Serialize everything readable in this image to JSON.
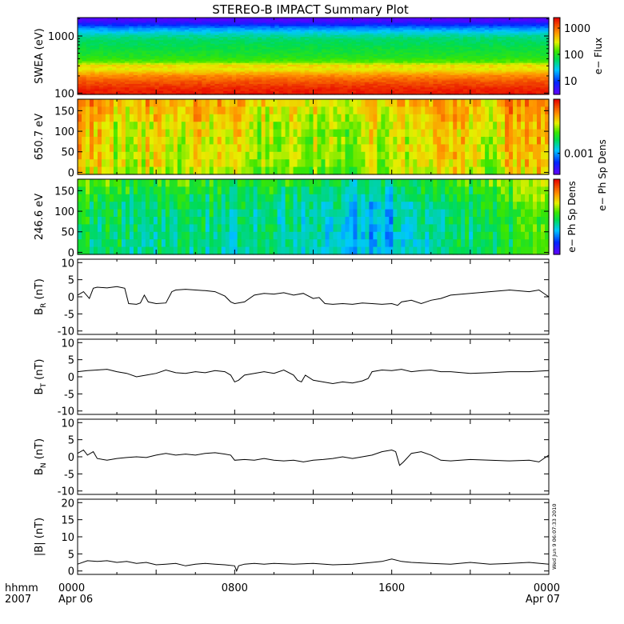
{
  "title": "STEREO-B IMPACT Summary Plot",
  "xaxis": {
    "row1_label": "hhmm",
    "row2_label": "2007",
    "ticks": [
      {
        "hour": 0,
        "line1": "0000",
        "line2": "Apr 06"
      },
      {
        "hour": 8,
        "line1": "0800",
        "line2": ""
      },
      {
        "hour": 16,
        "line1": "1600",
        "line2": ""
      },
      {
        "hour": 24,
        "line1": "0000",
        "line2": "Apr 07"
      }
    ],
    "range_hours": [
      0,
      24
    ]
  },
  "timestamp": "Wed Jun 9 06:07:33 2010",
  "chart_data": [
    {
      "type": "heatmap",
      "id": "swea",
      "ylabel": "SWEA (eV)",
      "ylog": true,
      "ylim": [
        95,
        2100
      ],
      "yticks": [
        {
          "v": 100,
          "label": "100"
        },
        {
          "v": 1000,
          "label": "1000"
        }
      ],
      "colorbar": {
        "label": "e− Flux",
        "log": true,
        "range": [
          3,
          2500
        ],
        "ticks": [
          {
            "v": 10,
            "label": "10"
          },
          {
            "v": 100,
            "label": "100"
          },
          {
            "v": 1000,
            "label": "1000"
          }
        ]
      },
      "profile": {
        "energy_ev": [
          95,
          120,
          150,
          200,
          260,
          300,
          350,
          420,
          500,
          600,
          700,
          800,
          900,
          1000,
          1200,
          1400,
          1600,
          1800,
          2100
        ],
        "level": [
          0.97,
          0.95,
          0.9,
          0.82,
          0.68,
          0.72,
          0.58,
          0.52,
          0.5,
          0.48,
          0.46,
          0.45,
          0.43,
          0.4,
          0.32,
          0.24,
          0.14,
          0.05,
          0.02
        ]
      }
    },
    {
      "type": "heatmap",
      "id": "pad650",
      "ylabel": "650.7 eV",
      "ylim": [
        -5,
        178
      ],
      "yticks": [
        {
          "v": 0,
          "label": "0"
        },
        {
          "v": 50,
          "label": "50"
        },
        {
          "v": 100,
          "label": "100"
        },
        {
          "v": 150,
          "label": "150"
        }
      ],
      "colorbar": {
        "label": "e− Ph Sp Dens",
        "ticks": [
          {
            "level": 0.28,
            "label": "0.001"
          }
        ]
      },
      "time_hours": [
        0,
        1,
        2,
        3,
        4,
        5,
        6,
        7,
        8,
        9,
        10,
        11,
        12,
        13,
        14,
        15,
        16,
        17,
        18,
        19,
        20,
        21,
        22,
        23,
        24
      ],
      "mean_level": [
        0.74,
        0.7,
        0.62,
        0.66,
        0.69,
        0.64,
        0.72,
        0.66,
        0.68,
        0.64,
        0.6,
        0.67,
        0.62,
        0.58,
        0.6,
        0.66,
        0.64,
        0.62,
        0.68,
        0.72,
        0.68,
        0.65,
        0.72,
        0.76,
        0.74
      ],
      "pitch_angle_trend": [
        0.56,
        0.6,
        0.62,
        0.63,
        0.63,
        0.64,
        0.66,
        0.7,
        0.74,
        0.78
      ]
    },
    {
      "type": "heatmap",
      "id": "pad246",
      "ylabel": "246.6 eV",
      "ylim": [
        -5,
        178
      ],
      "yticks": [
        {
          "v": 0,
          "label": "0"
        },
        {
          "v": 50,
          "label": "50"
        },
        {
          "v": 100,
          "label": "100"
        },
        {
          "v": 150,
          "label": "150"
        }
      ],
      "colorbar": {
        "label": "e− Ph Sp Dens"
      },
      "time_hours": [
        0,
        1,
        2,
        3,
        4,
        5,
        6,
        7,
        8,
        9,
        10,
        11,
        12,
        13,
        14,
        15,
        16,
        17,
        18,
        19,
        20,
        21,
        22,
        23,
        24
      ],
      "mean_level": [
        0.5,
        0.5,
        0.48,
        0.46,
        0.48,
        0.47,
        0.48,
        0.47,
        0.47,
        0.46,
        0.45,
        0.45,
        0.46,
        0.4,
        0.38,
        0.36,
        0.36,
        0.42,
        0.46,
        0.47,
        0.48,
        0.49,
        0.52,
        0.6,
        0.62
      ],
      "pitch_angle_trend": [
        0.5,
        0.5,
        0.5,
        0.51,
        0.52,
        0.53,
        0.55,
        0.6,
        0.66,
        0.72
      ]
    },
    {
      "type": "line",
      "id": "br",
      "ylabel": "B",
      "ylabel_sub": "R",
      "yunit": "(nT)",
      "ylim": [
        -11,
        11
      ],
      "yticks": [
        -10,
        -5,
        0,
        5,
        10
      ],
      "x": [
        0,
        0.3,
        0.6,
        0.8,
        1.0,
        1.5,
        2.0,
        2.4,
        2.6,
        3.0,
        3.2,
        3.4,
        3.6,
        4.0,
        4.5,
        4.8,
        5.0,
        5.5,
        6.0,
        6.5,
        7.0,
        7.5,
        7.8,
        8.0,
        8.5,
        9.0,
        9.5,
        10.0,
        10.5,
        11.0,
        11.5,
        12.0,
        12.3,
        12.6,
        13.0,
        13.5,
        14.0,
        14.5,
        15.0,
        15.5,
        16.0,
        16.3,
        16.5,
        17.0,
        17.5,
        18.0,
        18.5,
        19.0,
        20.0,
        21.0,
        22.0,
        23.0,
        23.5,
        24.0
      ],
      "y": [
        0.5,
        1.5,
        -0.5,
        2.5,
        2.8,
        2.6,
        3.0,
        2.5,
        -2.0,
        -2.2,
        -1.8,
        0.5,
        -1.5,
        -2.0,
        -1.8,
        1.5,
        2.0,
        2.2,
        2.0,
        1.8,
        1.5,
        0.2,
        -1.5,
        -2.0,
        -1.5,
        0.5,
        1.0,
        0.8,
        1.2,
        0.5,
        1.0,
        -0.5,
        -0.2,
        -2.0,
        -2.2,
        -2.0,
        -2.2,
        -1.8,
        -2.0,
        -2.2,
        -2.0,
        -2.5,
        -1.5,
        -1.0,
        -2.0,
        -1.0,
        -0.5,
        0.5,
        1.0,
        1.5,
        2.0,
        1.5,
        2.0,
        0.0
      ]
    },
    {
      "type": "line",
      "id": "bt",
      "ylabel": "B",
      "ylabel_sub": "T",
      "yunit": "(nT)",
      "ylim": [
        -11,
        11
      ],
      "yticks": [
        -10,
        -5,
        0,
        5,
        10
      ],
      "x": [
        0,
        0.5,
        1.0,
        1.5,
        2.0,
        2.5,
        3.0,
        3.5,
        4.0,
        4.5,
        5.0,
        5.5,
        6.0,
        6.5,
        7.0,
        7.5,
        7.8,
        8.0,
        8.2,
        8.5,
        9.0,
        9.5,
        10.0,
        10.5,
        11.0,
        11.2,
        11.4,
        11.6,
        12.0,
        12.5,
        13.0,
        13.5,
        14.0,
        14.5,
        14.8,
        15.0,
        15.5,
        16.0,
        16.5,
        17.0,
        17.5,
        18.0,
        18.5,
        19.0,
        20.0,
        21.0,
        22.0,
        23.0,
        24.0
      ],
      "y": [
        1.5,
        1.8,
        2.0,
        2.2,
        1.5,
        1.0,
        0.0,
        0.5,
        1.0,
        2.0,
        1.2,
        1.0,
        1.5,
        1.2,
        1.8,
        1.5,
        0.5,
        -1.5,
        -1.0,
        0.5,
        1.0,
        1.5,
        1.0,
        2.0,
        0.5,
        -1.0,
        -1.5,
        0.5,
        -1.0,
        -1.5,
        -2.0,
        -1.5,
        -1.8,
        -1.2,
        -0.5,
        1.5,
        2.0,
        1.8,
        2.2,
        1.5,
        1.8,
        2.0,
        1.5,
        1.5,
        1.0,
        1.2,
        1.5,
        1.5,
        1.8
      ]
    },
    {
      "type": "line",
      "id": "bn",
      "ylabel": "B",
      "ylabel_sub": "N",
      "yunit": "(nT)",
      "ylim": [
        -11,
        11
      ],
      "yticks": [
        -10,
        -5,
        0,
        5,
        10
      ],
      "x": [
        0,
        0.3,
        0.5,
        0.8,
        1.0,
        1.5,
        2.0,
        2.5,
        3.0,
        3.5,
        4.0,
        4.5,
        5.0,
        5.5,
        6.0,
        6.5,
        7.0,
        7.5,
        7.8,
        8.0,
        8.5,
        9.0,
        9.5,
        10.0,
        10.5,
        11.0,
        11.5,
        12.0,
        12.5,
        13.0,
        13.5,
        14.0,
        14.5,
        15.0,
        15.5,
        16.0,
        16.2,
        16.4,
        16.6,
        17.0,
        17.5,
        18.0,
        18.5,
        19.0,
        20.0,
        21.0,
        22.0,
        23.0,
        23.5,
        24.0
      ],
      "y": [
        1.0,
        2.0,
        0.5,
        1.5,
        -0.5,
        -1.0,
        -0.5,
        -0.2,
        0.0,
        -0.2,
        0.5,
        1.0,
        0.5,
        0.8,
        0.5,
        1.0,
        1.2,
        0.8,
        0.5,
        -1.0,
        -0.8,
        -1.0,
        -0.5,
        -1.0,
        -1.2,
        -1.0,
        -1.5,
        -1.0,
        -0.8,
        -0.5,
        0.0,
        -0.5,
        0.0,
        0.5,
        1.5,
        2.0,
        1.5,
        -2.5,
        -1.5,
        1.0,
        1.5,
        0.5,
        -1.0,
        -1.2,
        -0.8,
        -1.0,
        -1.2,
        -1.0,
        -1.5,
        0.5
      ]
    },
    {
      "type": "line",
      "id": "bmag",
      "ylabel": "|B|",
      "yunit": "(nT)",
      "ylim": [
        -1,
        21
      ],
      "yticks": [
        0,
        5,
        10,
        15,
        20
      ],
      "x": [
        0,
        0.5,
        1.0,
        1.5,
        2.0,
        2.5,
        3.0,
        3.5,
        4.0,
        4.5,
        5.0,
        5.5,
        6.0,
        6.5,
        7.0,
        7.5,
        8.0,
        8.1,
        8.2,
        8.5,
        9.0,
        9.5,
        10.0,
        11.0,
        12.0,
        13.0,
        14.0,
        15.0,
        15.5,
        16.0,
        16.5,
        17.0,
        18.0,
        19.0,
        20.0,
        21.0,
        22.0,
        23.0,
        24.0
      ],
      "y": [
        2.0,
        3.0,
        2.8,
        3.0,
        2.5,
        2.8,
        2.2,
        2.5,
        1.8,
        2.0,
        2.2,
        1.5,
        2.0,
        2.2,
        2.0,
        1.8,
        1.5,
        0.0,
        1.5,
        2.0,
        2.2,
        2.0,
        2.2,
        2.0,
        2.2,
        1.8,
        2.0,
        2.5,
        2.8,
        3.5,
        2.8,
        2.5,
        2.2,
        2.0,
        2.5,
        2.0,
        2.2,
        2.5,
        2.0
      ]
    }
  ]
}
